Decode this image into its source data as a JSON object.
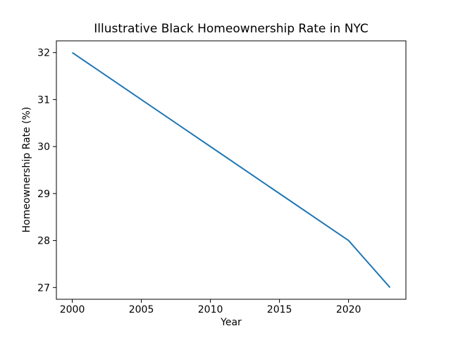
{
  "chart_data": {
    "type": "line",
    "title": "Illustrative Black Homeownership Rate in NYC",
    "xlabel": "Year",
    "ylabel": "Homeownership Rate (%)",
    "x": [
      2000,
      2005,
      2010,
      2015,
      2020,
      2023
    ],
    "y": [
      32,
      31,
      30,
      29,
      28,
      27
    ],
    "xticks": [
      2000,
      2005,
      2010,
      2015,
      2020
    ],
    "yticks": [
      27,
      28,
      29,
      30,
      31,
      32
    ],
    "xlim": [
      1998.85,
      2024.15
    ],
    "ylim": [
      26.75,
      32.25
    ],
    "grid": false,
    "legend": "none",
    "markers": "none",
    "line_color": "#1f77b4",
    "axis_color": "#000000",
    "background_color": "#ffffff"
  }
}
